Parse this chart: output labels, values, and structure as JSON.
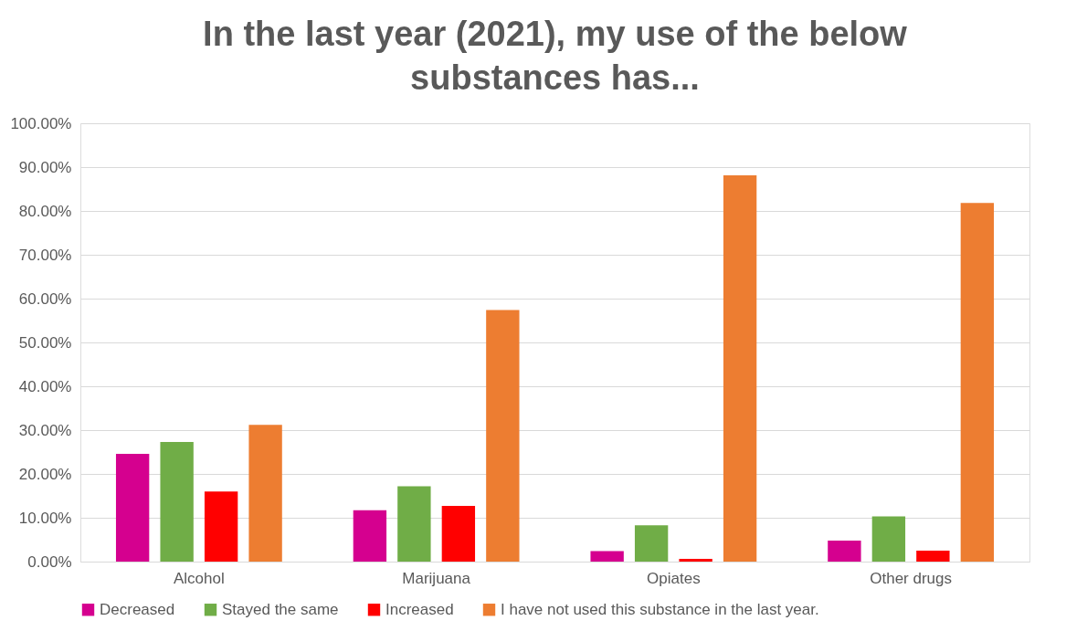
{
  "chart_data": {
    "type": "bar",
    "title": "In the last year (2021), my use of the below substances has...",
    "categories": [
      "Alcohol",
      "Marijuana",
      "Opiates",
      "Other drugs"
    ],
    "series": [
      {
        "name": "Decreased",
        "color": "#d5008f",
        "values": [
          24.6,
          11.7,
          2.4,
          4.8
        ]
      },
      {
        "name": "Stayed the same",
        "color": "#70ad47",
        "values": [
          27.3,
          17.2,
          8.3,
          10.3
        ]
      },
      {
        "name": "Increased",
        "color": "#ff0000",
        "values": [
          16.0,
          12.7,
          0.6,
          2.5
        ]
      },
      {
        "name": "I have not used this substance in the last year.",
        "color": "#ed7d31",
        "values": [
          31.2,
          57.4,
          88.1,
          81.8
        ]
      }
    ],
    "ylim": [
      0,
      100
    ],
    "yticks": [
      {
        "value": 0,
        "label": "0.00%"
      },
      {
        "value": 10,
        "label": "10.00%"
      },
      {
        "value": 20,
        "label": "20.00%"
      },
      {
        "value": 30,
        "label": "30.00%"
      },
      {
        "value": 40,
        "label": "40.00%"
      },
      {
        "value": 50,
        "label": "50.00%"
      },
      {
        "value": 60,
        "label": "60.00%"
      },
      {
        "value": 70,
        "label": "70.00%"
      },
      {
        "value": 80,
        "label": "80.00%"
      },
      {
        "value": 90,
        "label": "90.00%"
      },
      {
        "value": 100,
        "label": "100.00%"
      }
    ],
    "grid": "y",
    "legend": "bottom"
  }
}
